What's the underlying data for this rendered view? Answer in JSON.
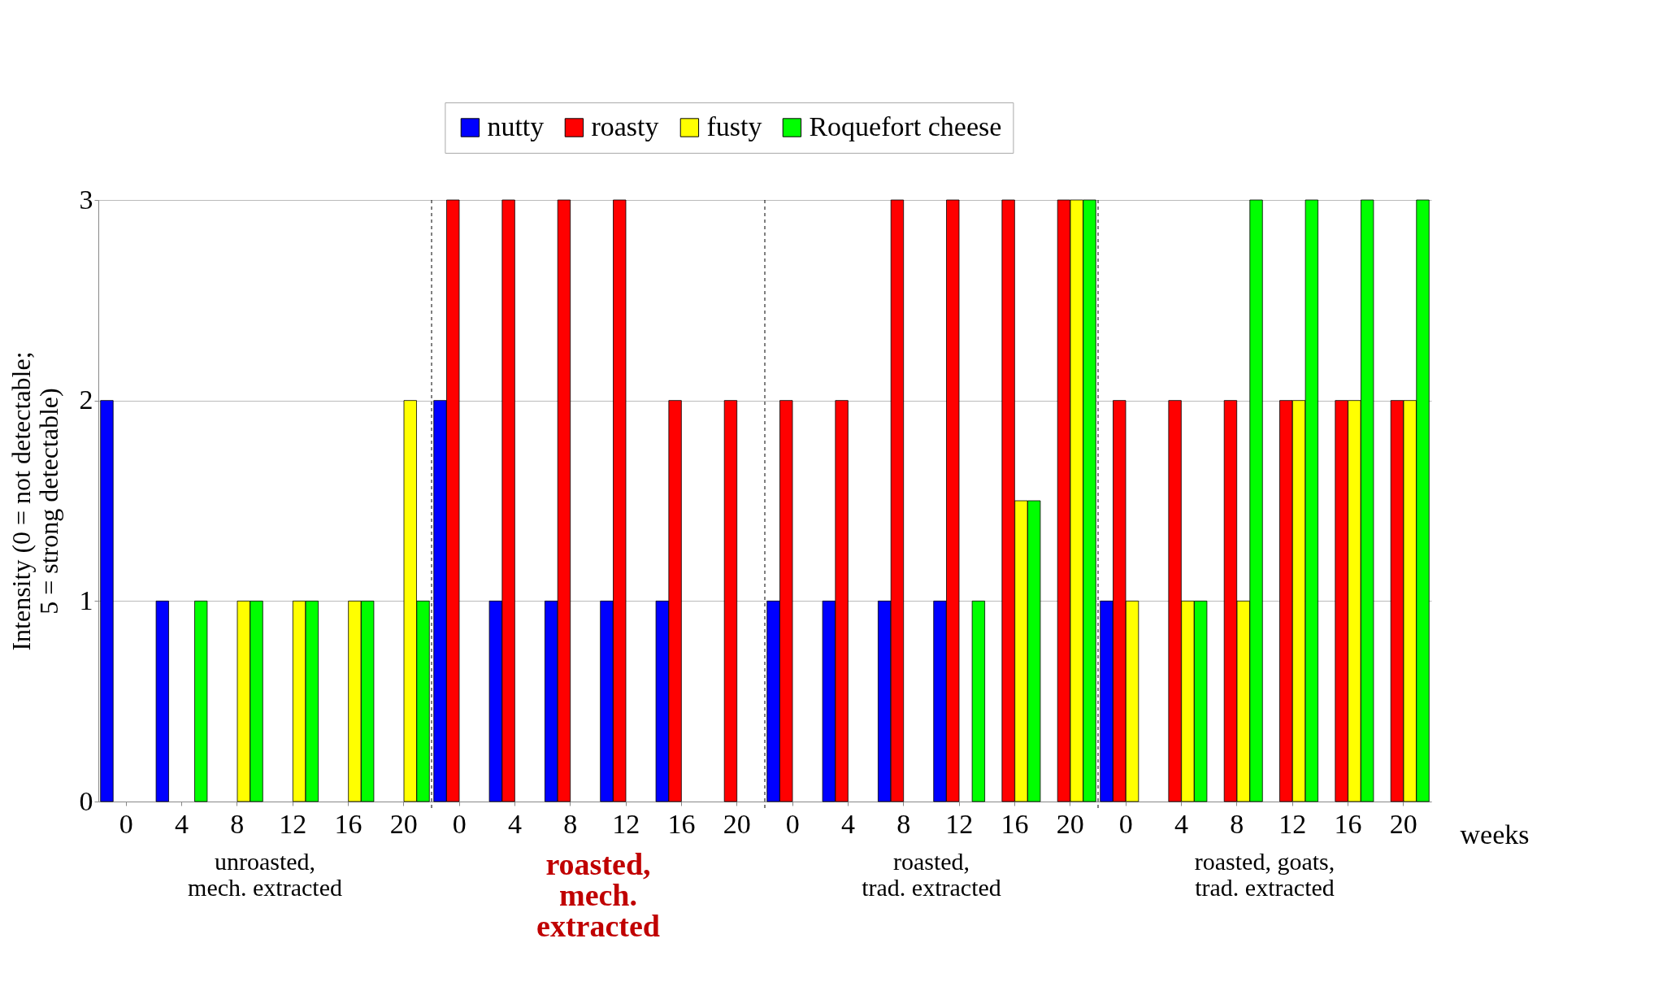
{
  "chart_data": {
    "type": "bar",
    "xlabel": "weeks",
    "ylabel": "Intensity (0 = not detectable;\n5 = strong detectable)",
    "categories": [
      "0",
      "4",
      "8",
      "12",
      "16",
      "20",
      "0",
      "4",
      "8",
      "12",
      "16",
      "20",
      "0",
      "4",
      "8",
      "12",
      "16",
      "20",
      "0",
      "4",
      "8",
      "12",
      "16",
      "20"
    ],
    "series": [
      {
        "name": "nutty",
        "color": "#0000ff",
        "values": [
          2,
          1,
          null,
          null,
          null,
          null,
          2,
          1,
          1,
          1,
          1,
          null,
          1,
          1,
          1,
          1,
          null,
          null,
          1,
          null,
          null,
          null,
          null,
          null
        ]
      },
      {
        "name": "roasty",
        "color": "#ff0000",
        "values": [
          null,
          null,
          null,
          null,
          null,
          null,
          3,
          3,
          3,
          3,
          2,
          2,
          2,
          2,
          3,
          3,
          3,
          3,
          2,
          2,
          2,
          2,
          2,
          2
        ]
      },
      {
        "name": "fusty",
        "color": "#ffff00",
        "values": [
          null,
          null,
          1,
          1,
          1,
          2,
          null,
          null,
          null,
          null,
          null,
          null,
          null,
          null,
          null,
          null,
          1.5,
          3,
          1,
          1,
          1,
          2,
          2,
          2
        ]
      },
      {
        "name": "Roquefort cheese",
        "color": "#00ff00",
        "values": [
          null,
          1,
          1,
          1,
          1,
          1,
          null,
          null,
          null,
          null,
          null,
          null,
          null,
          null,
          null,
          1,
          1.5,
          3,
          null,
          1,
          3,
          3,
          3,
          3
        ]
      }
    ],
    "ylim": [
      0,
      3
    ],
    "yticks": [
      0,
      1,
      2,
      3
    ],
    "grid": "y",
    "legend": "top",
    "annotations": [
      "unroasted,\nmech. extracted",
      "roasted,\nmech.\nextracted",
      "roasted,\ntrad. extracted",
      "roasted, goats,\ntrad. extracted"
    ]
  }
}
